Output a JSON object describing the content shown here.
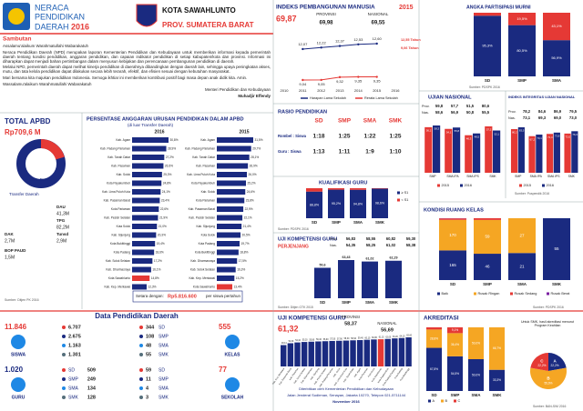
{
  "header": {
    "title_line1": "NERACA",
    "title_line2": "PENDIDIKAN",
    "title_line3": "DAERAH",
    "year": "2016",
    "city": "KOTA SAWAHLUNTO",
    "province": "PROV. SUMATERA BARAT"
  },
  "sambutan": {
    "title": "Sambutan",
    "greeting": "Assalamu'alaikum Warahmatullahi Wabarakatuh",
    "paragraphs": [
      "Neraca Pendidikan Daerah (NPD) merupakan laporan Kementerian Pendidikan dan Kebudayaan untuk memberikan informasi kepada pemerintah daerah tentang kondisi pendidikan, anggaran pendidikan, dan capaian indikator pendidikan di setiap kabupaten/kota dan provinsi. Informasi ini diharapkan dapat menjadi bahan pertimbangan dalam menyusun kebijakan dan perencanaan pembangunan pendidikan di daerah.",
      "Melalui NPD, pemerintah daerah dapat melihat kinerja pendidikan di daerahnya dibandingkan dengan daerah lain, sehingga upaya peningkatan akses, mutu, dan tata kelola pendidikan dapat dilakukan secara lebih terarah, efektif, dan efisien sesuai dengan kebutuhan masyarakat.",
      "Mari bersama kita majukan pendidikan Indonesia. Semoga ikhtiar ini memberikan kontribusi positif bagi masa depan anak didik kita. Amin."
    ],
    "closing": "Wassalamu'alaikum Warahmatullahi Wabarakatuh",
    "signature_role": "Menteri Pendidikan dan Kebudayaan",
    "signature_name": "Muhadjir Effendy"
  },
  "apbd": {
    "title": "TOTAL APBD",
    "total": "Rp709,6 M",
    "dana_daerah": "Dana Daerah",
    "transfer_daerah": "Transfer Daerah",
    "items": [
      {
        "label": "DAU",
        "value": "41,3M"
      },
      {
        "label": "TPG",
        "value": "82,2M"
      },
      {
        "label": "Tunsd",
        "value": "2,9M"
      },
      {
        "label": "DAK",
        "value": "2,7M"
      },
      {
        "label": "BOP PAUD",
        "value": "1,5M"
      }
    ],
    "source": "Sumber: Ditjen PK 2016"
  },
  "anggaran": {
    "title": "PERSENTASE ANGGARAN URUSAN PENDIDIKAN DALAM APBD",
    "subtitle": "(di luar Transfer Daerah)",
    "color": "#1a2a80",
    "highlight": "Kota Sawahlunto",
    "highlight_color": "#e53935",
    "charts": [
      {
        "year": "2016",
        "categories": [
          "Kab. Agam",
          "Kab. Padang Pariaman",
          "Kab. Tanah Datar",
          "Kab. Pasaman",
          "Kab. Solok",
          "Kota Payakumbuh",
          "Kab. Lima Puluh Kota",
          "Kab. Pasaman Barat",
          "Kota Pariaman",
          "Kab. Pesisir Selatan",
          "Kota Solok",
          "Kab. Sijunjung",
          "Kota Bukittinggi",
          "Kota Padang",
          "Kab. Solok Selatan",
          "Kab. Dharmasraya",
          "Kota Sawahlunto",
          "Kab. Kep. Mentawai"
        ],
        "values": [
          30.8,
          28.9,
          27.2,
          26.5,
          25.3,
          24.8,
          24.1,
          23.4,
          22.6,
          21.9,
          21.0,
          20.3,
          19.4,
          18.6,
          17.2,
          16.1,
          14.8,
          12.3
        ],
        "value_labels": [
          "30,8%",
          "28,9%",
          "27,2%",
          "26,5%",
          "25,3%",
          "24,8%",
          "24,1%",
          "23,4%",
          "22,6%",
          "21,9%",
          "21,0%",
          "20,3%",
          "19,4%",
          "18,6%",
          "17,2%",
          "16,1%",
          "14,8%",
          "12,3%"
        ]
      },
      {
        "year": "2015",
        "categories": [
          "Kab. Agam",
          "Kab. Padang Pariaman",
          "Kab. Tanah Datar",
          "Kab. Pasaman",
          "Kab. Lima Puluh Kota",
          "Kota Payakumbuh",
          "Kab. Solok",
          "Kota Pariaman",
          "Kab. Pasaman Barat",
          "Kab. Pesisir Selatan",
          "Kab. Sijunjung",
          "Kota Solok",
          "Kota Padang",
          "Kota Bukittinggi",
          "Kab. Dharmasraya",
          "Kab. Solok Selatan",
          "Kab. Kep. Mentawai",
          "Kota Sawahlunto"
        ],
        "values": [
          31.5,
          29.7,
          28.1,
          26.9,
          26.0,
          25.2,
          24.6,
          23.8,
          22.9,
          22.1,
          21.4,
          20.5,
          19.7,
          18.8,
          17.5,
          16.3,
          15.2,
          13.4
        ],
        "value_labels": [
          "31,5%",
          "29,7%",
          "28,1%",
          "26,9%",
          "26,0%",
          "25,2%",
          "24,6%",
          "23,8%",
          "22,9%",
          "22,1%",
          "21,4%",
          "20,5%",
          "19,7%",
          "18,8%",
          "17,5%",
          "16,3%",
          "15,2%",
          "13,4%"
        ]
      }
    ],
    "equiv_label": "Setara dengan:",
    "equiv_value": "Rp5.816.600",
    "equiv_unit": "per siswa pertahun"
  },
  "ipm": {
    "title": "INDEKS PEMBANGUNAN MANUSIA",
    "year": "2015",
    "value": "69,87",
    "province_label": "PROVINSI",
    "province_value": "69,98",
    "national_label": "NASIONAL",
    "national_value": "69,55",
    "type": "line",
    "x": [
      "2010",
      "2011",
      "2012",
      "2013",
      "2014",
      "2015",
      "2016"
    ],
    "series": [
      {
        "name": "Harapan Lama Sekolah",
        "color": "#1a2a80",
        "values": [
          null,
          12.07,
          12.22,
          12.37,
          12.53,
          12.6,
          null
        ],
        "value_labels": [
          null,
          "12,07",
          "12,22",
          "12,37",
          "12,53",
          "12,60",
          null
        ]
      },
      {
        "name": "Rerata Lama Sekolah",
        "color": "#e53935",
        "values": [
          null,
          9.04,
          9.05,
          9.32,
          9.35,
          9.35,
          null
        ],
        "value_labels": [
          null,
          "9,04",
          "9,05",
          "9,32",
          "9,35",
          "9,35",
          null
        ]
      }
    ],
    "targets": [
      "12,55 Tahun",
      "9,06 Tahun"
    ]
  },
  "apm": {
    "title": "ANGKA PARTISIPASI MURNI",
    "type": "stacked-bar",
    "categories": [
      "SD",
      "SMP",
      "SMA"
    ],
    "series": [
      {
        "color": "#1a2a80",
        "values": [
          95.3,
          80.5,
          56.9
        ],
        "value_labels": [
          "95,3%",
          "80,5%",
          "56,9%"
        ]
      },
      {
        "color": "#e53935",
        "values": [
          4.7,
          19.5,
          43.1
        ],
        "value_labels": [
          "4,7%",
          "19,5%",
          "43,1%"
        ]
      }
    ],
    "source": "Sumber: PDSPK 2016"
  },
  "rasio": {
    "title": "RASIO PENDIDIKAN",
    "columns": [
      "SD",
      "SMP",
      "SMA",
      "SMK"
    ],
    "rows": [
      {
        "label": "Rombel : Siswa",
        "values": [
          "1:18",
          "1:25",
          "1:22",
          "1:25"
        ]
      },
      {
        "label": "Guru : Siswa",
        "values": [
          "1:13",
          "1:11",
          "1:9",
          "1:10"
        ]
      }
    ]
  },
  "un": {
    "title": "UJIAN NASIONAL",
    "table": [
      {
        "label": "Prov.",
        "values": [
          "59,8",
          "57,7",
          "51,5",
          "80,6"
        ]
      },
      {
        "label": "Nas.",
        "values": [
          "58,6",
          "56,9",
          "50,8",
          "55,5"
        ]
      }
    ],
    "type": "bar",
    "categories": [
      "SMP",
      "SMA IPA",
      "SMA IPS",
      "SMK"
    ],
    "series": [
      {
        "name": "2015",
        "color": "#e53935",
        "values": [
          56.2,
          54.1,
          46.3,
          57.2
        ],
        "value_labels": [
          "56,2",
          "54,1",
          "46,3",
          "57,2"
        ]
      },
      {
        "name": "2016",
        "color": "#1a2a80",
        "values": [
          58.3,
          55.8,
          48.5,
          52.1
        ],
        "value_labels": [
          "58,3",
          "55,8",
          "48,5",
          "52,1"
        ]
      }
    ]
  },
  "integritas": {
    "title": "INDEKS INTEGRITAS UJIAN NASIONAL",
    "table": [
      {
        "label": "Prov.",
        "values": [
          "78,2",
          "84,6",
          "86,9",
          "79,5"
        ]
      },
      {
        "label": "Nas.",
        "values": [
          "73,1",
          "69,3",
          "69,0",
          "73,0"
        ]
      }
    ],
    "type": "bar",
    "categories": [
      "SMP",
      "SMA IPA",
      "SMA IPS",
      "SMK"
    ],
    "series": [
      {
        "name": "2015",
        "color": "#e53935",
        "values": [
          80.2,
          67.2,
          71.4,
          72.0
        ],
        "value_labels": [
          "80,2",
          "67,2",
          "71,4",
          "72,0"
        ]
      },
      {
        "name": "2016",
        "color": "#1a2a80",
        "values": [
          83.5,
          70.1,
          73.8,
          76.3
        ],
        "value_labels": [
          "83,5",
          "70,1",
          "73,8",
          "76,3"
        ]
      }
    ],
    "source": "Sumber: Puspendik 2016"
  },
  "kualifikasi": {
    "title": "KUALIFIKASI GURU",
    "type": "stacked-bar",
    "categories": [
      "SD",
      "SMP",
      "SMA",
      "SMK"
    ],
    "series": [
      {
        "name": "≥ S1",
        "color": "#1a2a80",
        "values": [
          88.8,
          95.2,
          94.8,
          98.6
        ],
        "value_labels": [
          "88,8%",
          "95,2%",
          "94,8%",
          "98,6%"
        ]
      },
      {
        "name": "< S1",
        "color": "#e53935",
        "values": [
          11.2,
          4.8,
          5.2,
          1.4
        ],
        "value_labels": [
          "11,2%",
          "4,8%",
          "5,2%",
          "1,4%"
        ]
      }
    ],
    "source": "Sumber: PDSPK 2016"
  },
  "ukg_jenjang": {
    "title": "UJI KOMPETENSI GURU",
    "subtitle": "PERJENJANG",
    "table": [
      {
        "label": "Prov.",
        "values": [
          "56,83",
          "58,55",
          "60,82",
          "59,30"
        ]
      },
      {
        "label": "Nas.",
        "values": [
          "54,35",
          "58,25",
          "61,02",
          "58,38"
        ]
      }
    ],
    "type": "bar",
    "categories": [
      "SD",
      "SMP",
      "SMA",
      "SMK"
    ],
    "values": [
      50.6,
      63.43,
      61.02,
      62.29
    ],
    "value_labels": [
      "50,6",
      "63,43",
      "61,02",
      "62,29"
    ],
    "color": "#1a2a80",
    "source": "Sumber: Ditjen GTK 2015"
  },
  "kelas": {
    "title": "KONDISI RUANG KELAS",
    "type": "stacked-bar",
    "categories": [
      "SD",
      "SMP",
      "SMA",
      "SMK"
    ],
    "series": [
      {
        "name": "Baik",
        "color": "#1a2a80",
        "values": [
          165,
          46,
          21,
          55
        ]
      },
      {
        "name": "Rusak Ringan",
        "color": "#f5a623",
        "values": [
          170,
          59,
          27,
          0
        ]
      },
      {
        "name": "Rusak Sedang",
        "color": "#e53935",
        "values": [
          8,
          3,
          0,
          0
        ]
      },
      {
        "name": "Rusak Berat",
        "color": "#7b1fa2",
        "values": [
          1,
          0,
          0,
          0
        ]
      }
    ],
    "source": "Sumber: PDSPK 2016"
  },
  "data_pendidikan": {
    "title": "Data Pendidikan Daerah",
    "level_colors": [
      "#e53935",
      "#1a2a80",
      "#1e88e5",
      "#546e7a"
    ],
    "siswa": {
      "label": "SISWA",
      "total": "11.846",
      "values": [
        "6.707",
        "2.675",
        "1.163",
        "1.301"
      ]
    },
    "guru": {
      "label": "GURU",
      "total": "1.020",
      "levels": [
        "SD",
        "SMP",
        "SMA",
        "SMK"
      ],
      "values": [
        "509",
        "249",
        "134",
        "128"
      ]
    },
    "kelas": {
      "label": "KELAS",
      "total": "555",
      "levels": [
        "SD",
        "SMP",
        "SMA",
        "SMK"
      ],
      "values": [
        "344",
        "108",
        "48",
        "55"
      ]
    },
    "sekolah": {
      "label": "SEKOLAH",
      "total": "77",
      "levels": [
        "SD",
        "SMP",
        "SMA",
        "SMK"
      ],
      "values": [
        "59",
        "11",
        "4",
        "3"
      ]
    }
  },
  "ukg": {
    "title": "UJI KOMPETENSI GURU",
    "value": "61,32",
    "province_label": "PROVINSI",
    "province_value": "58,37",
    "national_label": "NASIONAL",
    "national_value": "56,69",
    "type": "bar",
    "color": "#1a2a80",
    "highlight": "Kota Sawahlunto",
    "highlight_color": "#e53935",
    "categories": [
      "Kab. Kep. Mentawai",
      "Kab. Pasaman Barat",
      "Kab. Pasaman",
      "Kab. Solok Selatan",
      "Kab. Dharmasraya",
      "Kab. Sijunjung",
      "Kab. Pesisir Selatan",
      "Kab. Padang Pariaman",
      "Kab. Solok",
      "Kab. Lima Puluh Kota",
      "Kab. Tanah Datar",
      "Kab. Agam",
      "Kota Pariaman",
      "Kota Solok",
      "Kota Sawahlunto",
      "Kota Payakumbuh",
      "Kota Padang Panjang",
      "Kota Padang",
      "Kota Bukittinggi"
    ],
    "values": [
      48.14,
      52.3,
      54.1,
      55.2,
      55.8,
      56.4,
      56.9,
      57.5,
      57.9,
      58.3,
      58.9,
      59.4,
      60.1,
      60.8,
      61.32,
      62.0,
      63.2,
      64.1,
      65.6
    ],
    "value_labels": [
      "48,14",
      "52,30",
      "54,10",
      "55,20",
      "55,80",
      "56,40",
      "56,90",
      "57,50",
      "57,90",
      "58,30",
      "58,90",
      "59,40",
      "60,10",
      "60,80",
      "61,32",
      "62,00",
      "63,20",
      "64,10",
      "65,60"
    ]
  },
  "publisher": {
    "lines": [
      "Diterbitkan oleh Kementerian Pendidikan dan Kebudayaan",
      "Jalan Jenderal Sudirman, Senayan, Jakarta 10270, Telepon 021-5711144",
      "November 2016"
    ]
  },
  "akreditasi": {
    "title": "AKREDITASI",
    "type": "stacked-bar",
    "categories": [
      "SD",
      "SMP",
      "SMA",
      "SMK"
    ],
    "series": [
      {
        "name": "A",
        "color": "#1a2a80",
        "values": [
          67.8,
          54.5,
          50.0,
          33.3
        ],
        "value_labels": [
          "67,8%",
          "54,5%",
          "50,0%",
          "33,3%"
        ]
      },
      {
        "name": "B",
        "color": "#f5a623",
        "values": [
          28.8,
          36.4,
          50.0,
          66.7
        ],
        "value_labels": [
          "28,8%",
          "36,4%",
          "50,0%",
          "66,7%"
        ]
      },
      {
        "name": "C",
        "color": "#e53935",
        "values": [
          3.4,
          9.1,
          0,
          0
        ],
        "value_labels": [
          "3,4%",
          "9,1%",
          "0%",
          "0%"
        ]
      }
    ],
    "pie": {
      "note": "Untuk SMK, hasil akreditasi menurut Program Keahlian",
      "slices": [
        {
          "name": "A",
          "color": "#1a2a80",
          "value": 22.2,
          "label": "22,2%"
        },
        {
          "name": "B",
          "color": "#f5a623",
          "value": 55.6,
          "label": "55,6%"
        },
        {
          "name": "C",
          "color": "#e53935",
          "value": 22.2,
          "label": "22,2%"
        }
      ]
    },
    "source": "Sumber: BAN-S/M 2016"
  }
}
